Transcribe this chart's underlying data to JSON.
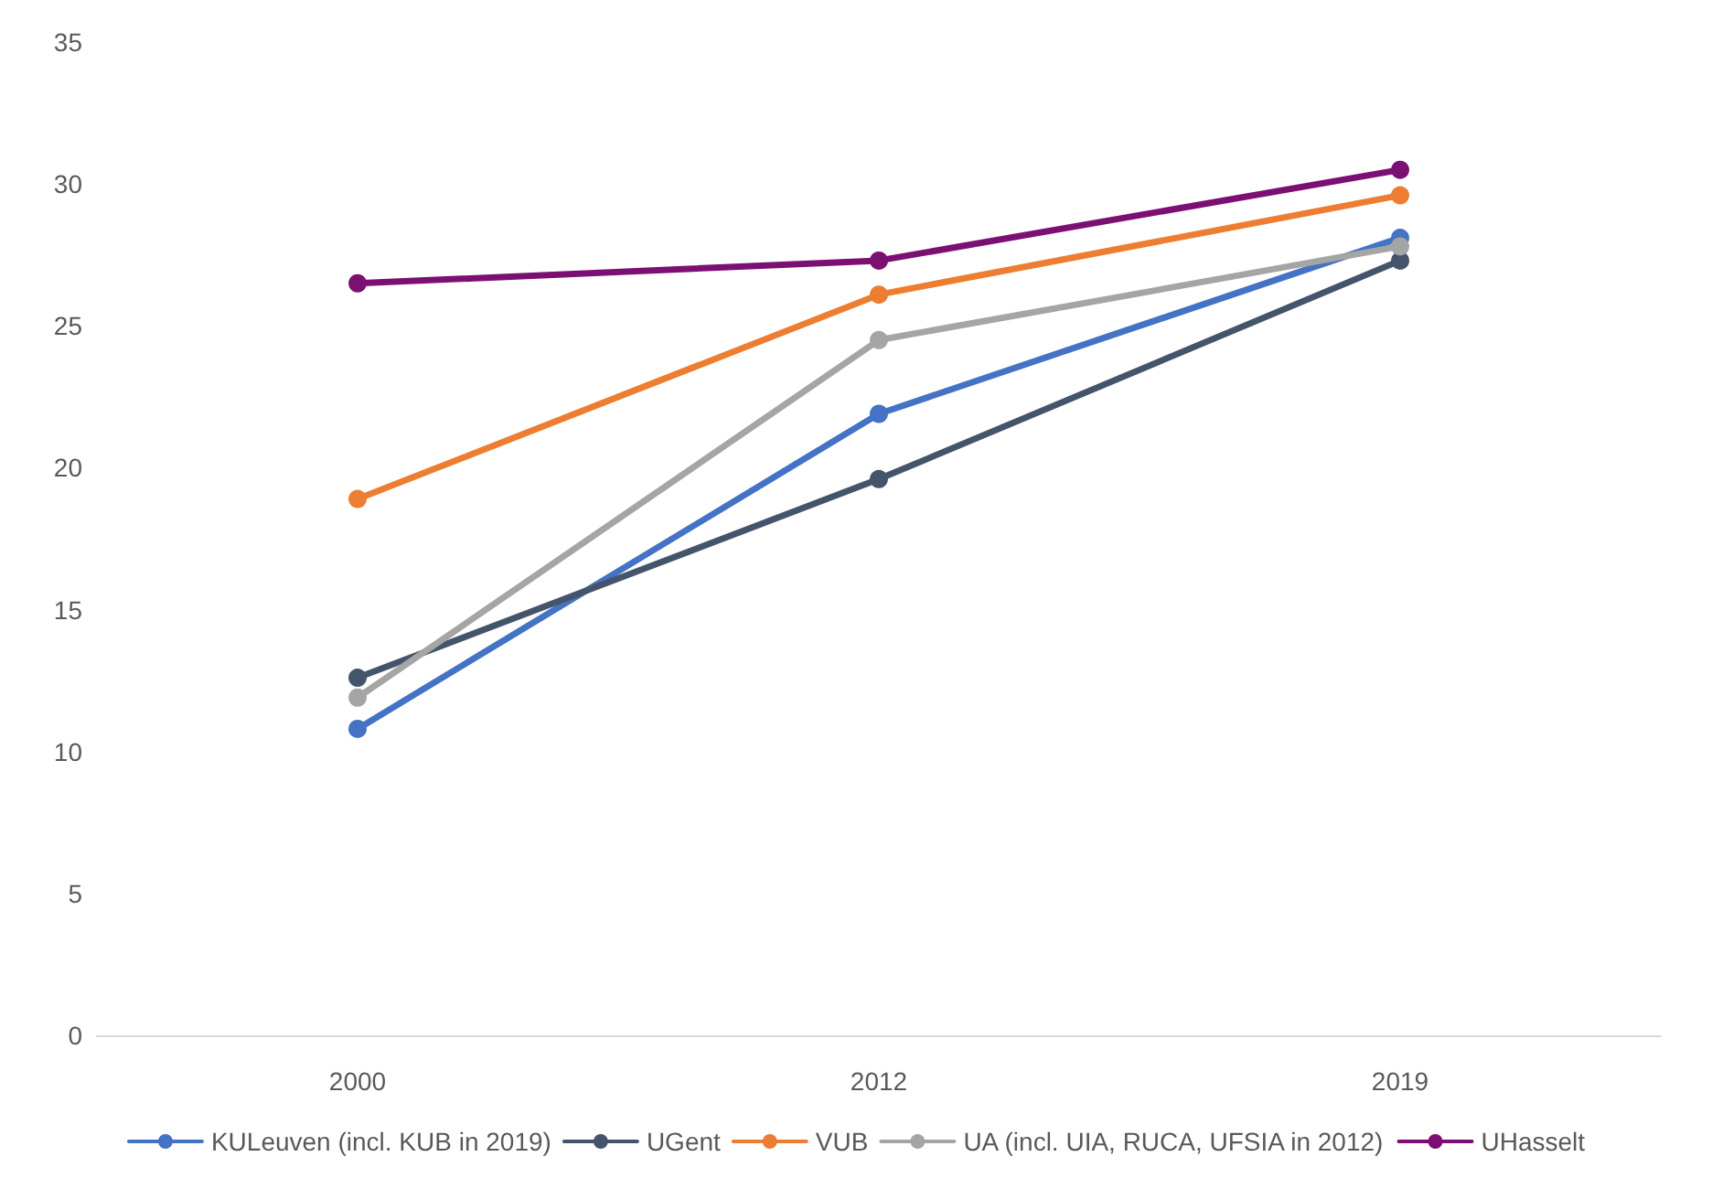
{
  "chart_data": {
    "type": "line",
    "categories": [
      "2000",
      "2012",
      "2019"
    ],
    "series": [
      {
        "name": "KULeuven (incl. KUB in 2019)",
        "color": "#4472c4",
        "values": [
          10.8,
          21.9,
          28.1
        ]
      },
      {
        "name": "UGent",
        "color": "#44546a",
        "values": [
          12.6,
          19.6,
          27.3
        ]
      },
      {
        "name": "VUB",
        "color": "#ed7d31",
        "values": [
          18.9,
          26.1,
          29.6
        ]
      },
      {
        "name": "UA (incl. UIA, RUCA, UFSIA in 2012)",
        "color": "#a5a5a5",
        "values": [
          11.9,
          24.5,
          27.8
        ]
      },
      {
        "name": "UHasselt",
        "color": "#7b0f72",
        "values": [
          26.5,
          27.3,
          30.5
        ]
      }
    ],
    "ylim": [
      0,
      35
    ],
    "yticks": [
      0,
      5,
      10,
      15,
      20,
      25,
      30,
      35
    ],
    "grid": false,
    "legend": "bottom",
    "marker": "circle",
    "line_style": "solid"
  }
}
